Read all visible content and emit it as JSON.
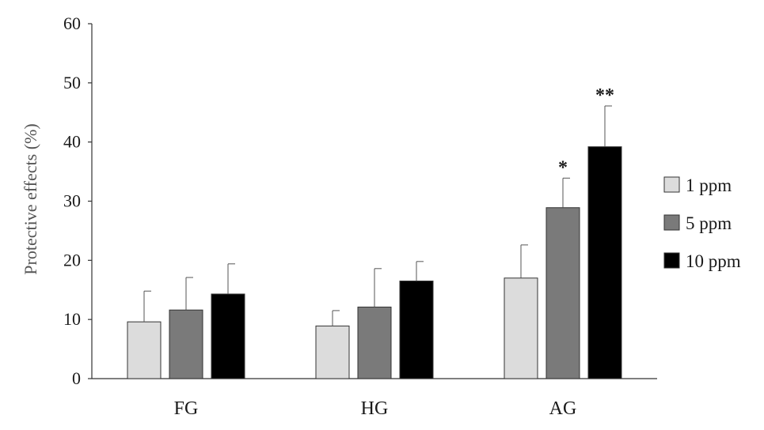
{
  "chart_data": {
    "type": "bar",
    "title": "",
    "xlabel": "",
    "ylabel": "Protective effects (%)",
    "ylim": [
      0,
      60
    ],
    "yticks": [
      0,
      10,
      20,
      30,
      40,
      50,
      60
    ],
    "grid": false,
    "legend_position": "right",
    "categories": [
      "FG",
      "HG",
      "AG"
    ],
    "series": [
      {
        "name": "1 ppm",
        "color": "#dcdcdc",
        "values": [
          9.6,
          8.9,
          17.0
        ],
        "errors": [
          5.2,
          2.6,
          5.6
        ],
        "significance": [
          "",
          "",
          ""
        ]
      },
      {
        "name": "5 ppm",
        "color": "#7a7a7a",
        "values": [
          11.6,
          12.1,
          28.9
        ],
        "errors": [
          5.5,
          6.5,
          5.0
        ],
        "significance": [
          "",
          "",
          "*"
        ]
      },
      {
        "name": "10 ppm",
        "color": "#000000",
        "values": [
          14.3,
          16.5,
          39.2
        ],
        "errors": [
          5.1,
          3.3,
          6.9
        ],
        "significance": [
          "",
          "",
          "**"
        ]
      }
    ]
  }
}
